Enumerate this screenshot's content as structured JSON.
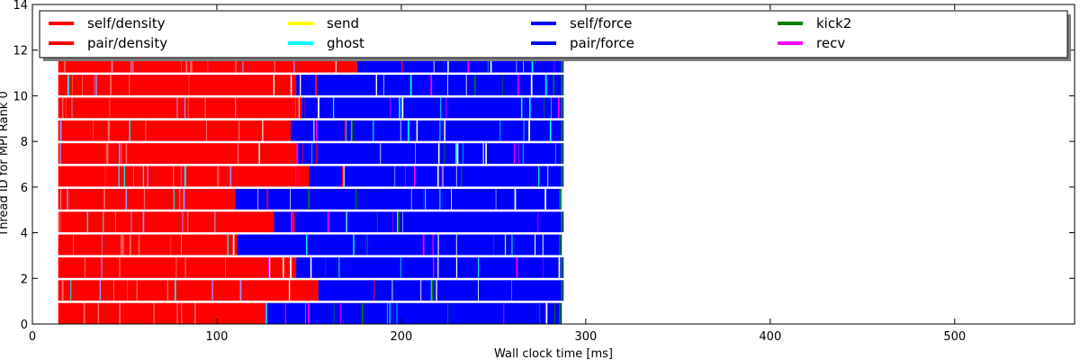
{
  "chart_data": {
    "type": "bar",
    "orientation": "horizontal",
    "title": "",
    "xlabel": "Wall clock time [ms]",
    "ylabel": "Thread ID for MPI Rank 0",
    "xlim": [
      0,
      565
    ],
    "ylim": [
      0,
      14
    ],
    "x_ticks": [
      0,
      100,
      200,
      300,
      400,
      500
    ],
    "y_ticks": [
      0,
      2,
      4,
      6,
      8,
      10,
      12,
      14
    ],
    "grid": false,
    "legend_placement": "top",
    "colors": {
      "self/density": "#ff0000",
      "pair/density": "#ff0000",
      "send": "#ffff00",
      "ghost": "#00ffff",
      "self/force": "#0000ff",
      "pair/force": "#0000ff",
      "kick2": "#008000",
      "recv": "#ff00ff"
    },
    "legend": [
      "self/density",
      "pair/density",
      "send",
      "ghost",
      "self/force",
      "pair/force",
      "kick2",
      "recv"
    ],
    "threads": [
      {
        "thread": 0,
        "start": 14,
        "red_end": 126,
        "end": 287
      },
      {
        "thread": 1,
        "start": 14,
        "red_end": 155,
        "end": 288
      },
      {
        "thread": 2,
        "start": 14,
        "red_end": 143,
        "end": 288
      },
      {
        "thread": 3,
        "start": 14,
        "red_end": 111,
        "end": 287
      },
      {
        "thread": 4,
        "start": 14,
        "red_end": 131,
        "end": 288
      },
      {
        "thread": 5,
        "start": 14,
        "red_end": 110,
        "end": 287
      },
      {
        "thread": 6,
        "start": 14,
        "red_end": 150,
        "end": 288
      },
      {
        "thread": 7,
        "start": 14,
        "red_end": 144,
        "end": 288
      },
      {
        "thread": 8,
        "start": 14,
        "red_end": 140,
        "end": 288
      },
      {
        "thread": 9,
        "start": 14,
        "red_end": 146,
        "end": 288
      },
      {
        "thread": 10,
        "start": 14,
        "red_end": 143,
        "end": 288
      },
      {
        "thread": 11,
        "start": 14,
        "red_end": 176,
        "end": 288
      }
    ]
  }
}
